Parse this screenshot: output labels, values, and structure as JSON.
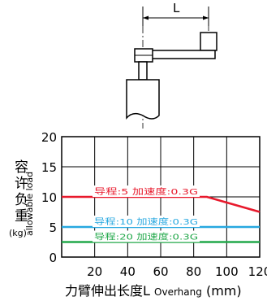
{
  "diagram": {
    "dimension_label": "L"
  },
  "chart_data": {
    "type": "line",
    "xlabel_cn": "力臂伸出长度L",
    "xlabel_en": "Overhang",
    "xlabel_unit": "(mm)",
    "ylabel_cn": [
      "容",
      "许",
      "负",
      "重"
    ],
    "ylabel_en": "allowable load",
    "ylabel_unit": "(kg)",
    "xlim": [
      0,
      120
    ],
    "ylim": [
      0,
      20
    ],
    "xticks": [
      20,
      40,
      60,
      80,
      100,
      120
    ],
    "yticks": [
      0,
      5,
      10,
      15,
      20
    ],
    "grid": true,
    "series": [
      {
        "name": "导程:5 加速度:0.3G",
        "color": "#e8192c",
        "x": [
          0,
          88,
          120
        ],
        "y": [
          10,
          10,
          7.5
        ]
      },
      {
        "name": "导程:10 加速度:0.3G",
        "color": "#27a8e0",
        "x": [
          0,
          120
        ],
        "y": [
          5,
          5
        ]
      },
      {
        "name": "导程:20 加速度:0.3G",
        "color": "#22a84a",
        "x": [
          0,
          120
        ],
        "y": [
          2.5,
          2.5
        ]
      }
    ]
  }
}
